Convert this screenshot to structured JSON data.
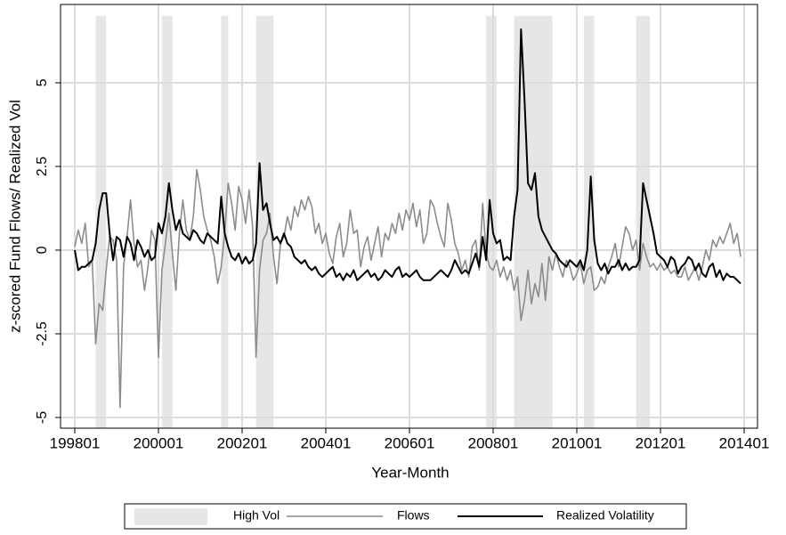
{
  "chart_data": {
    "type": "line",
    "xlabel": "Year-Month",
    "ylabel": "z-scored Fund Flows/ Realized Vol",
    "categories": [
      "199801",
      "199802",
      "199803",
      "199804",
      "199805",
      "199806",
      "199807",
      "199808",
      "199809",
      "199810",
      "199811",
      "199812",
      "199901",
      "199902",
      "199903",
      "199904",
      "199905",
      "199906",
      "199907",
      "199908",
      "199909",
      "199910",
      "199911",
      "199912",
      "200001",
      "200002",
      "200003",
      "200004",
      "200005",
      "200006",
      "200007",
      "200008",
      "200009",
      "200010",
      "200011",
      "200012",
      "200101",
      "200102",
      "200103",
      "200104",
      "200105",
      "200106",
      "200107",
      "200108",
      "200109",
      "200110",
      "200111",
      "200112",
      "200201",
      "200202",
      "200203",
      "200204",
      "200205",
      "200206",
      "200207",
      "200208",
      "200209",
      "200210",
      "200211",
      "200212",
      "200301",
      "200302",
      "200303",
      "200304",
      "200305",
      "200306",
      "200307",
      "200308",
      "200309",
      "200310",
      "200311",
      "200312",
      "200401",
      "200402",
      "200403",
      "200404",
      "200405",
      "200406",
      "200407",
      "200408",
      "200409",
      "200410",
      "200411",
      "200412",
      "200501",
      "200502",
      "200503",
      "200504",
      "200505",
      "200506",
      "200507",
      "200508",
      "200509",
      "200510",
      "200511",
      "200512",
      "200601",
      "200602",
      "200603",
      "200604",
      "200605",
      "200606",
      "200607",
      "200608",
      "200609",
      "200610",
      "200611",
      "200612",
      "200701",
      "200702",
      "200703",
      "200704",
      "200705",
      "200706",
      "200707",
      "200708",
      "200709",
      "200710",
      "200711",
      "200712",
      "200801",
      "200802",
      "200803",
      "200804",
      "200805",
      "200806",
      "200807",
      "200808",
      "200809",
      "200810",
      "200811",
      "200812",
      "200901",
      "200902",
      "200903",
      "200904",
      "200905",
      "200906",
      "200907",
      "200908",
      "200909",
      "200910",
      "200911",
      "200912",
      "201001",
      "201002",
      "201003",
      "201004",
      "201005",
      "201006",
      "201007",
      "201008",
      "201009",
      "201010",
      "201011",
      "201012",
      "201101",
      "201102",
      "201103",
      "201104",
      "201105",
      "201106",
      "201107",
      "201108",
      "201109",
      "201110",
      "201111",
      "201112",
      "201201",
      "201202",
      "201203",
      "201204",
      "201205",
      "201206",
      "201207",
      "201208",
      "201209",
      "201210",
      "201211",
      "201212",
      "201301",
      "201302",
      "201303",
      "201304",
      "201305",
      "201306",
      "201307",
      "201308",
      "201309",
      "201310",
      "201311",
      "201312",
      "201401"
    ],
    "xticks": [
      "199801",
      "200001",
      "200201",
      "200401",
      "200601",
      "200801",
      "201001",
      "201201",
      "201401"
    ],
    "series": [
      {
        "name": "Flows",
        "color": "#8c8c8c",
        "values": [
          0.1,
          0.6,
          0.2,
          0.8,
          -0.5,
          -0.3,
          -2.8,
          -1.6,
          -1.8,
          -0.6,
          0.4,
          0.3,
          -0.3,
          -4.7,
          -0.5,
          0.4,
          1.5,
          0.2,
          -0.5,
          -0.3,
          -1.2,
          -0.5,
          0.6,
          0.3,
          -3.2,
          -0.6,
          0.2,
          1.1,
          -0.1,
          -1.2,
          0.5,
          1.5,
          0.6,
          0.3,
          1.0,
          2.4,
          1.8,
          1.0,
          0.6,
          0.3,
          -0.2,
          -1.0,
          -0.5,
          0.5,
          2.0,
          1.4,
          0.6,
          1.9,
          1.5,
          0.8,
          1.8,
          0.7,
          -3.2,
          -0.6,
          0.3,
          0.5,
          1.1,
          -0.2,
          -1.0,
          0.2,
          0.4,
          1.0,
          0.6,
          1.3,
          1.0,
          1.5,
          1.2,
          1.6,
          1.3,
          0.5,
          0.8,
          0.2,
          0.5,
          -0.1,
          -0.4,
          0.4,
          0.8,
          -0.2,
          0.2,
          1.2,
          0.5,
          0.6,
          -0.5,
          0.1,
          0.4,
          -0.3,
          0.2,
          0.7,
          -0.2,
          0.5,
          0.3,
          0.8,
          0.5,
          1.1,
          0.6,
          1.2,
          0.9,
          1.4,
          0.7,
          1.2,
          0.2,
          0.5,
          1.5,
          1.3,
          0.8,
          0.4,
          0.1,
          1.4,
          0.9,
          0.2,
          -0.1,
          -0.6,
          -0.3,
          -0.8,
          0.1,
          0.3,
          -0.6,
          1.4,
          -0.1,
          -0.5,
          -0.6,
          -0.3,
          -0.8,
          -0.5,
          -0.9,
          -0.6,
          -1.2,
          -0.8,
          -2.1,
          -1.5,
          -0.6,
          -1.6,
          -1.0,
          -1.4,
          -0.4,
          -1.5,
          -0.2,
          -0.6,
          -0.1,
          -0.5,
          -0.8,
          -0.3,
          -0.5,
          -0.9,
          -0.7,
          -0.4,
          -1.0,
          -0.6,
          -0.5,
          -1.2,
          -1.1,
          -0.8,
          -1.0,
          -0.5,
          -0.2,
          0.2,
          -0.5,
          0.1,
          0.7,
          0.5,
          0.0,
          0.3,
          -0.6,
          0.2,
          -0.2,
          -0.5,
          -0.4,
          -0.6,
          -0.4,
          -0.6,
          -0.5,
          -0.7,
          -0.6,
          -0.8,
          -0.8,
          -0.5,
          -0.9,
          -0.7,
          -0.5,
          -0.9,
          -0.5,
          0.0,
          -0.3,
          0.3,
          0.1,
          0.4,
          0.2,
          0.5,
          0.8,
          0.2,
          0.5,
          -0.2,
          null
        ]
      },
      {
        "name": "Realized Volatility",
        "color": "#000000",
        "values": [
          0.0,
          -0.6,
          -0.5,
          -0.5,
          -0.4,
          -0.3,
          0.2,
          1.2,
          1.7,
          1.7,
          0.5,
          -0.3,
          0.4,
          0.3,
          -0.2,
          0.4,
          0.2,
          -0.3,
          0.3,
          0.1,
          -0.2,
          0.0,
          -0.3,
          -0.2,
          0.8,
          0.5,
          1.0,
          2.0,
          1.2,
          0.6,
          0.9,
          0.5,
          0.4,
          0.3,
          0.6,
          0.5,
          0.3,
          0.2,
          0.5,
          0.4,
          0.3,
          0.2,
          1.6,
          0.5,
          0.1,
          -0.2,
          -0.3,
          -0.1,
          -0.4,
          -0.2,
          -0.4,
          -0.3,
          0.2,
          2.6,
          1.2,
          1.4,
          0.8,
          0.3,
          0.4,
          0.2,
          0.5,
          0.2,
          0.1,
          -0.2,
          -0.3,
          -0.4,
          -0.3,
          -0.5,
          -0.6,
          -0.5,
          -0.7,
          -0.8,
          -0.7,
          -0.6,
          -0.5,
          -0.8,
          -0.7,
          -0.9,
          -0.7,
          -0.8,
          -0.6,
          -0.9,
          -0.8,
          -0.7,
          -0.6,
          -0.8,
          -0.7,
          -0.9,
          -0.8,
          -0.6,
          -0.7,
          -0.8,
          -0.6,
          -0.5,
          -0.8,
          -0.7,
          -0.8,
          -0.7,
          -0.6,
          -0.8,
          -0.9,
          -0.9,
          -0.9,
          -0.8,
          -0.7,
          -0.6,
          -0.7,
          -0.8,
          -0.6,
          -0.3,
          -0.5,
          -0.7,
          -0.6,
          -0.7,
          -0.4,
          -0.1,
          -0.5,
          0.4,
          -0.3,
          1.5,
          0.5,
          0.2,
          0.3,
          -0.3,
          -0.2,
          -0.3,
          1.0,
          1.8,
          6.6,
          4.5,
          2.0,
          1.8,
          2.3,
          1.0,
          0.6,
          0.4,
          0.2,
          0.0,
          -0.1,
          -0.3,
          -0.4,
          -0.5,
          -0.3,
          -0.4,
          -0.5,
          -0.3,
          -0.6,
          0.0,
          2.2,
          0.3,
          -0.4,
          -0.6,
          -0.4,
          -0.7,
          -0.5,
          -0.5,
          -0.3,
          -0.6,
          -0.4,
          -0.6,
          -0.5,
          -0.5,
          -0.3,
          2.0,
          1.5,
          1.0,
          0.5,
          -0.1,
          -0.2,
          -0.3,
          -0.5,
          -0.2,
          -0.3,
          -0.7,
          -0.5,
          -0.4,
          -0.2,
          -0.3,
          -0.6,
          -0.4,
          -0.7,
          -0.8,
          -0.5,
          -0.4,
          -0.8,
          -0.6,
          -0.9,
          -0.7,
          -0.8,
          -0.8,
          -0.9,
          -1.0,
          null
        ]
      }
    ],
    "shaded": {
      "name": "High Vol",
      "color": "#e6e6e6",
      "band_top": 7,
      "ranges": [
        [
          "199807",
          "199810"
        ],
        [
          "200002",
          "200005"
        ],
        [
          "200107",
          "200109"
        ],
        [
          "200205",
          "200210"
        ],
        [
          "200711",
          "200802"
        ],
        [
          "200807",
          "200906"
        ],
        [
          "201003",
          "201006"
        ],
        [
          "201106",
          "201110"
        ]
      ]
    },
    "ylim": [
      -5.32,
      7.34
    ],
    "yticks": [
      -5,
      -2.5,
      0,
      2.5,
      5
    ],
    "grid": true,
    "legend": "bottom"
  }
}
